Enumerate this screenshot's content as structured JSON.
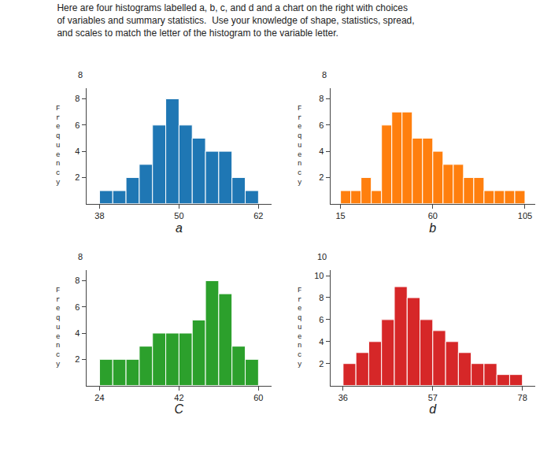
{
  "title": "Here are four histograms labelled a, b, c, and d and a chart on the right with choices\nof variables and summary statistics.  Use your knowledge of shape, statistics, spread,\nand scales to match the letter of the histogram to the variable letter.",
  "chart_data": [
    {
      "type": "histogram",
      "xlabel": "a",
      "ylabel": "F\nr\ne\nq\nu\ne\nn\nc\ny",
      "bins": [
        38,
        40,
        42,
        44,
        46,
        48,
        50,
        52,
        54,
        56,
        58,
        60,
        62
      ],
      "counts": [
        1,
        1,
        2,
        3,
        6,
        8,
        6,
        5,
        4,
        4,
        2,
        1
      ],
      "xlim": [
        36,
        64
      ],
      "xticks": [
        38,
        50,
        62
      ],
      "ylim": [
        0,
        8.8
      ],
      "yticks": [
        2,
        4,
        6,
        8
      ],
      "grid": false,
      "annotations": [
        "8"
      ]
    },
    {
      "type": "histogram",
      "xlabel": "b",
      "ylabel": "F\nr\ne\nq\nu\ne\nn\nc\ny",
      "bins": [
        15,
        20,
        25,
        30,
        35,
        40,
        45,
        50,
        55,
        60,
        65,
        70,
        75,
        80,
        85,
        90,
        95,
        100,
        105
      ],
      "counts": [
        1,
        1,
        2,
        1,
        6,
        7,
        7,
        5,
        5,
        4,
        3,
        3,
        2,
        2,
        1,
        1,
        1,
        1
      ],
      "xlim": [
        10,
        110
      ],
      "xticks": [
        15,
        60,
        105
      ],
      "ylim": [
        0,
        8.8
      ],
      "yticks": [
        2,
        4,
        6,
        8
      ],
      "grid": false,
      "annotations": [
        "8"
      ]
    },
    {
      "type": "histogram",
      "xlabel": "C",
      "ylabel": "F\nr\ne\nq\nu\ne\nn\nc\ny",
      "bins": [
        24,
        27,
        30,
        33,
        36,
        39,
        42,
        45,
        48,
        51,
        54,
        57,
        60
      ],
      "counts": [
        2,
        2,
        2,
        3,
        4,
        4,
        4,
        5,
        8,
        7,
        3,
        2
      ],
      "xlim": [
        21,
        63
      ],
      "xticks": [
        24,
        42,
        60
      ],
      "ylim": [
        0,
        8.8
      ],
      "yticks": [
        2,
        4,
        6,
        8
      ],
      "grid": false,
      "annotations": [
        "8"
      ]
    },
    {
      "type": "histogram",
      "xlabel": "d",
      "ylabel": "F\nr\ne\nq\nu\ne\nn\nc\ny",
      "bins": [
        36,
        39,
        42,
        45,
        48,
        51,
        54,
        57,
        60,
        63,
        66,
        69,
        72,
        75,
        78
      ],
      "counts": [
        2,
        3,
        4,
        6,
        9,
        8,
        6,
        5,
        4,
        3,
        2,
        2,
        1,
        1
      ],
      "xlim": [
        33,
        81
      ],
      "xticks": [
        36,
        57,
        78
      ],
      "ylim": [
        0,
        10.5
      ],
      "yticks": [
        2,
        4,
        6,
        8,
        10
      ],
      "grid": false,
      "annotations": [
        "10"
      ]
    }
  ]
}
